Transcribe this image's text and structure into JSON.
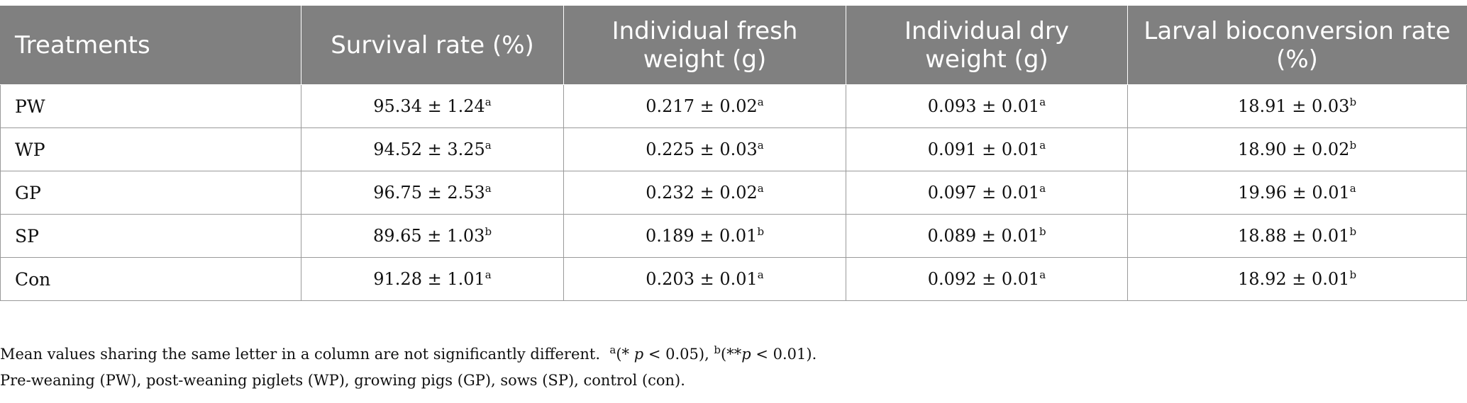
{
  "table": {
    "headers": [
      "Treatments",
      "Survival rate (%)",
      "Individual fresh weight (g)",
      "Individual dry weight (g)",
      "Larval bioconversion rate (%)"
    ],
    "rows": [
      {
        "label": "PW",
        "cells": [
          {
            "v": "95.34 ± 1.24",
            "s": "a"
          },
          {
            "v": "0.217 ± 0.02",
            "s": "a"
          },
          {
            "v": "0.093 ± 0.01",
            "s": "a"
          },
          {
            "v": "18.91 ± 0.03",
            "s": "b"
          }
        ]
      },
      {
        "label": "WP",
        "cells": [
          {
            "v": "94.52 ± 3.25",
            "s": "a"
          },
          {
            "v": "0.225 ± 0.03",
            "s": "a"
          },
          {
            "v": "0.091 ± 0.01",
            "s": "a"
          },
          {
            "v": "18.90 ± 0.02",
            "s": "b"
          }
        ]
      },
      {
        "label": "GP",
        "cells": [
          {
            "v": "96.75 ± 2.53",
            "s": "a"
          },
          {
            "v": "0.232 ± 0.02",
            "s": "a"
          },
          {
            "v": "0.097 ± 0.01",
            "s": "a"
          },
          {
            "v": "19.96 ± 0.01",
            "s": "a"
          }
        ]
      },
      {
        "label": "SP",
        "cells": [
          {
            "v": "89.65 ± 1.03",
            "s": "b"
          },
          {
            "v": "0.189 ± 0.01",
            "s": "b"
          },
          {
            "v": "0.089 ± 0.01",
            "s": "b"
          },
          {
            "v": "18.88 ± 0.01",
            "s": "b"
          }
        ]
      },
      {
        "label": "Con",
        "cells": [
          {
            "v": "91.28 ± 1.01",
            "s": "a"
          },
          {
            "v": "0.203 ± 0.01",
            "s": "a"
          },
          {
            "v": "0.092 ± 0.01",
            "s": "a"
          },
          {
            "v": "18.92 ± 0.01",
            "s": "b"
          }
        ]
      }
    ]
  },
  "notes": {
    "line1_text": "Mean values sharing the same letter in a column are not significantly different.",
    "sig_a_sup": "a",
    "sig_a_open": "(* ",
    "sig_a_p": "p",
    "sig_a_close": " < 0.05), ",
    "sig_b_sup": "b",
    "sig_b_open": "(**",
    "sig_b_p": "p",
    "sig_b_close": " < 0.01).",
    "line2": "Pre-weaning (PW), post-weaning piglets (WP), growing pigs (GP), sows (SP), control (con)."
  }
}
